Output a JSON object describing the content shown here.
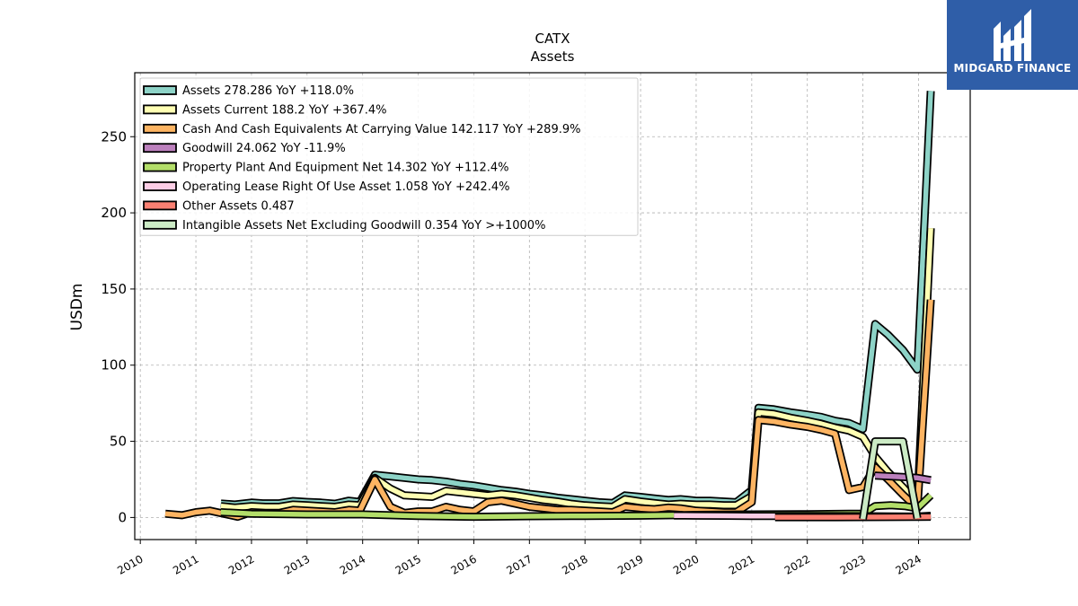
{
  "brand": {
    "name": "MIDGARD FINANCE",
    "bg_color": "#2f5ea8",
    "icon": "midgard-logo-icon"
  },
  "chart_data": {
    "type": "line",
    "title": "CATX",
    "subtitle": "Assets",
    "ylabel": "USDm",
    "xlabel": "",
    "xlim": [
      2009.9,
      2024.93
    ],
    "ylim": [
      -14.5,
      292
    ],
    "x_ticks": [
      2010,
      2011,
      2012,
      2013,
      2014,
      2015,
      2016,
      2017,
      2018,
      2019,
      2020,
      2021,
      2022,
      2023,
      2024
    ],
    "x_tick_labels": [
      "2010",
      "2011",
      "2012",
      "2013",
      "2014",
      "2015",
      "2016",
      "2017",
      "2018",
      "2019",
      "2020",
      "2021",
      "2022",
      "2023",
      "2024"
    ],
    "y_ticks": [
      0,
      50,
      100,
      150,
      200,
      250
    ],
    "y_tick_labels": [
      "0",
      "50",
      "100",
      "150",
      "200",
      "250"
    ],
    "grid": true,
    "legend_position": "top-left",
    "series": [
      {
        "name": "Assets",
        "legend": "Assets  278.286 YoY +118.0%",
        "color": "#8dd3c7",
        "points": [
          [
            2011.45,
            9.2
          ],
          [
            2011.7,
            8.5
          ],
          [
            2012.0,
            9.8
          ],
          [
            2012.2,
            9.3
          ],
          [
            2012.5,
            9.3
          ],
          [
            2012.75,
            10.8
          ],
          [
            2013.0,
            10.2
          ],
          [
            2013.25,
            9.8
          ],
          [
            2013.5,
            9.0
          ],
          [
            2013.75,
            11.0
          ],
          [
            2013.95,
            10.2
          ],
          [
            2014.22,
            28.0
          ],
          [
            2014.5,
            27.0
          ],
          [
            2014.75,
            26.0
          ],
          [
            2015.0,
            25.0
          ],
          [
            2015.25,
            24.5
          ],
          [
            2015.5,
            23.5
          ],
          [
            2015.75,
            22.0
          ],
          [
            2016.0,
            21.0
          ],
          [
            2016.25,
            19.5
          ],
          [
            2016.5,
            18.0
          ],
          [
            2016.75,
            17.0
          ],
          [
            2017.0,
            15.5
          ],
          [
            2017.25,
            14.5
          ],
          [
            2017.5,
            13.0
          ],
          [
            2017.75,
            12.0
          ],
          [
            2018.0,
            11.0
          ],
          [
            2018.25,
            10.0
          ],
          [
            2018.5,
            9.5
          ],
          [
            2018.72,
            14.5
          ],
          [
            2019.0,
            13.5
          ],
          [
            2019.25,
            12.5
          ],
          [
            2019.5,
            11.5
          ],
          [
            2019.72,
            12.0
          ],
          [
            2020.0,
            11.0
          ],
          [
            2020.25,
            11.0
          ],
          [
            2020.5,
            10.5
          ],
          [
            2020.72,
            10.0
          ],
          [
            2021.0,
            18.0
          ],
          [
            2021.12,
            72.0
          ],
          [
            2021.4,
            71.0
          ],
          [
            2021.7,
            69.0
          ],
          [
            2022.0,
            67.5
          ],
          [
            2022.25,
            66.0
          ],
          [
            2022.5,
            63.5
          ],
          [
            2022.75,
            62.0
          ],
          [
            2023.0,
            58.0
          ],
          [
            2023.22,
            127.0
          ],
          [
            2023.45,
            120.0
          ],
          [
            2023.72,
            110.0
          ],
          [
            2023.98,
            97.0
          ],
          [
            2024.22,
            280.0
          ]
        ]
      },
      {
        "name": "Assets Current",
        "legend": "Assets Current  188.2 YoY +367.4%",
        "color": "#ffffb3",
        "points": [
          [
            2011.45,
            7.5
          ],
          [
            2011.7,
            6.5
          ],
          [
            2012.0,
            7.5
          ],
          [
            2012.25,
            7.0
          ],
          [
            2012.5,
            7.0
          ],
          [
            2012.75,
            8.5
          ],
          [
            2013.0,
            8.0
          ],
          [
            2013.25,
            7.5
          ],
          [
            2013.5,
            7.0
          ],
          [
            2013.75,
            8.5
          ],
          [
            2013.95,
            8.0
          ],
          [
            2014.22,
            26.0
          ],
          [
            2014.5,
            19.0
          ],
          [
            2014.75,
            14.5
          ],
          [
            2015.0,
            14.0
          ],
          [
            2015.25,
            13.5
          ],
          [
            2015.5,
            17.5
          ],
          [
            2015.75,
            16.5
          ],
          [
            2016.0,
            15.5
          ],
          [
            2016.25,
            14.5
          ],
          [
            2016.5,
            15.5
          ],
          [
            2016.75,
            14.5
          ],
          [
            2017.0,
            13.0
          ],
          [
            2017.25,
            11.5
          ],
          [
            2017.5,
            10.5
          ],
          [
            2017.75,
            9.0
          ],
          [
            2018.0,
            8.0
          ],
          [
            2018.25,
            7.5
          ],
          [
            2018.5,
            7.0
          ],
          [
            2018.72,
            12.0
          ],
          [
            2019.0,
            10.5
          ],
          [
            2019.25,
            9.5
          ],
          [
            2019.5,
            8.5
          ],
          [
            2019.72,
            9.0
          ],
          [
            2020.0,
            8.5
          ],
          [
            2020.25,
            8.5
          ],
          [
            2020.5,
            8.0
          ],
          [
            2020.72,
            8.0
          ],
          [
            2021.0,
            14.0
          ],
          [
            2021.12,
            69.0
          ],
          [
            2021.4,
            68.0
          ],
          [
            2021.7,
            65.5
          ],
          [
            2022.0,
            63.5
          ],
          [
            2022.25,
            61.5
          ],
          [
            2022.5,
            59.0
          ],
          [
            2022.75,
            57.0
          ],
          [
            2023.0,
            53.0
          ],
          [
            2023.22,
            40.0
          ],
          [
            2023.45,
            30.0
          ],
          [
            2023.72,
            20.0
          ],
          [
            2023.98,
            9.0
          ],
          [
            2024.22,
            190.0
          ]
        ]
      },
      {
        "name": "Cash And Cash Equivalents At Carrying Value",
        "legend": "Cash And Cash Equivalents At Carrying Value  142.117 YoY +289.9%",
        "color": "#fdb462",
        "points": [
          [
            2010.45,
            2.5
          ],
          [
            2010.75,
            1.5
          ],
          [
            2011.0,
            3.5
          ],
          [
            2011.25,
            4.5
          ],
          [
            2011.5,
            2.5
          ],
          [
            2011.75,
            0.5
          ],
          [
            2012.0,
            3.5
          ],
          [
            2012.25,
            3.0
          ],
          [
            2012.5,
            3.0
          ],
          [
            2012.75,
            5.0
          ],
          [
            2013.0,
            4.5
          ],
          [
            2013.25,
            4.0
          ],
          [
            2013.5,
            3.5
          ],
          [
            2013.75,
            5.0
          ],
          [
            2013.95,
            4.5
          ],
          [
            2014.22,
            25.0
          ],
          [
            2014.5,
            7.0
          ],
          [
            2014.75,
            3.0
          ],
          [
            2015.0,
            4.0
          ],
          [
            2015.25,
            4.0
          ],
          [
            2015.5,
            7.0
          ],
          [
            2015.75,
            5.0
          ],
          [
            2016.0,
            4.0
          ],
          [
            2016.25,
            10.0
          ],
          [
            2016.5,
            11.0
          ],
          [
            2016.75,
            9.0
          ],
          [
            2017.0,
            7.0
          ],
          [
            2017.25,
            6.0
          ],
          [
            2017.5,
            5.0
          ],
          [
            2017.75,
            5.0
          ],
          [
            2018.0,
            4.5
          ],
          [
            2018.25,
            4.0
          ],
          [
            2018.5,
            3.5
          ],
          [
            2018.72,
            7.0
          ],
          [
            2019.0,
            6.0
          ],
          [
            2019.25,
            5.5
          ],
          [
            2019.5,
            6.5
          ],
          [
            2019.72,
            6.0
          ],
          [
            2020.0,
            4.5
          ],
          [
            2020.25,
            4.0
          ],
          [
            2020.5,
            3.5
          ],
          [
            2020.72,
            3.5
          ],
          [
            2021.0,
            10.0
          ],
          [
            2021.12,
            64.0
          ],
          [
            2021.4,
            63.0
          ],
          [
            2021.7,
            61.0
          ],
          [
            2022.0,
            59.5
          ],
          [
            2022.25,
            57.5
          ],
          [
            2022.5,
            55.0
          ],
          [
            2022.75,
            18.0
          ],
          [
            2023.0,
            20.0
          ],
          [
            2023.22,
            33.0
          ],
          [
            2023.45,
            25.0
          ],
          [
            2023.72,
            15.0
          ],
          [
            2023.98,
            6.0
          ],
          [
            2024.22,
            143.0
          ]
        ]
      },
      {
        "name": "Goodwill",
        "legend": "Goodwill  24.062 YoY -11.9%",
        "color": "#bc80bd",
        "points": [
          [
            2023.22,
            27.5
          ],
          [
            2023.5,
            27.0
          ],
          [
            2023.75,
            26.5
          ],
          [
            2023.98,
            26.0
          ],
          [
            2024.22,
            24.5
          ]
        ]
      },
      {
        "name": "Property Plant And Equipment Net",
        "legend": "Property Plant And Equipment Net  14.302 YoY +112.4%",
        "color": "#b3de69",
        "points": [
          [
            2011.45,
            3.5
          ],
          [
            2012.0,
            2.5
          ],
          [
            2013.0,
            2.0
          ],
          [
            2014.0,
            2.0
          ],
          [
            2014.5,
            1.5
          ],
          [
            2015.0,
            1.0
          ],
          [
            2016.0,
            0.5
          ],
          [
            2017.0,
            0.8
          ],
          [
            2018.0,
            1.0
          ],
          [
            2019.0,
            1.2
          ],
          [
            2019.6,
            1.5
          ],
          [
            2020.0,
            1.7
          ],
          [
            2021.0,
            2.0
          ],
          [
            2022.0,
            2.2
          ],
          [
            2022.75,
            2.5
          ],
          [
            2023.0,
            2.5
          ],
          [
            2023.22,
            7.5
          ],
          [
            2023.5,
            8.0
          ],
          [
            2023.75,
            7.5
          ],
          [
            2023.98,
            6.0
          ],
          [
            2024.22,
            14.5
          ]
        ]
      },
      {
        "name": "Operating Lease Right Of Use Asset",
        "legend": "Operating Lease Right Of Use Asset  1.058 YoY +242.4%",
        "color": "#fccde5",
        "points": [
          [
            2019.6,
            1.3
          ],
          [
            2020.0,
            1.2
          ],
          [
            2020.5,
            1.1
          ],
          [
            2021.0,
            1.0
          ],
          [
            2021.5,
            1.0
          ],
          [
            2022.0,
            1.0
          ],
          [
            2022.5,
            0.9
          ],
          [
            2023.0,
            0.8
          ],
          [
            2023.5,
            0.7
          ],
          [
            2023.98,
            0.6
          ],
          [
            2024.22,
            1.1
          ]
        ]
      },
      {
        "name": "Other Assets",
        "legend": "Other Assets  0.487",
        "color": "#fb8072",
        "points": [
          [
            2021.42,
            0.2
          ],
          [
            2022.0,
            0.2
          ],
          [
            2022.5,
            0.2
          ],
          [
            2023.0,
            0.25
          ],
          [
            2023.5,
            0.3
          ],
          [
            2023.98,
            0.4
          ],
          [
            2024.22,
            0.5
          ]
        ]
      },
      {
        "name": "Intangible Assets Net Excluding Goodwill",
        "legend": "Intangible Assets Net Excluding Goodwill  0.354 YoY >+1000%",
        "color": "#ccebc5",
        "points": [
          [
            2023.0,
            -1.0
          ],
          [
            2023.22,
            50.0
          ],
          [
            2023.45,
            50.0
          ],
          [
            2023.72,
            50.0
          ],
          [
            2023.98,
            -0.5
          ]
        ]
      }
    ]
  }
}
